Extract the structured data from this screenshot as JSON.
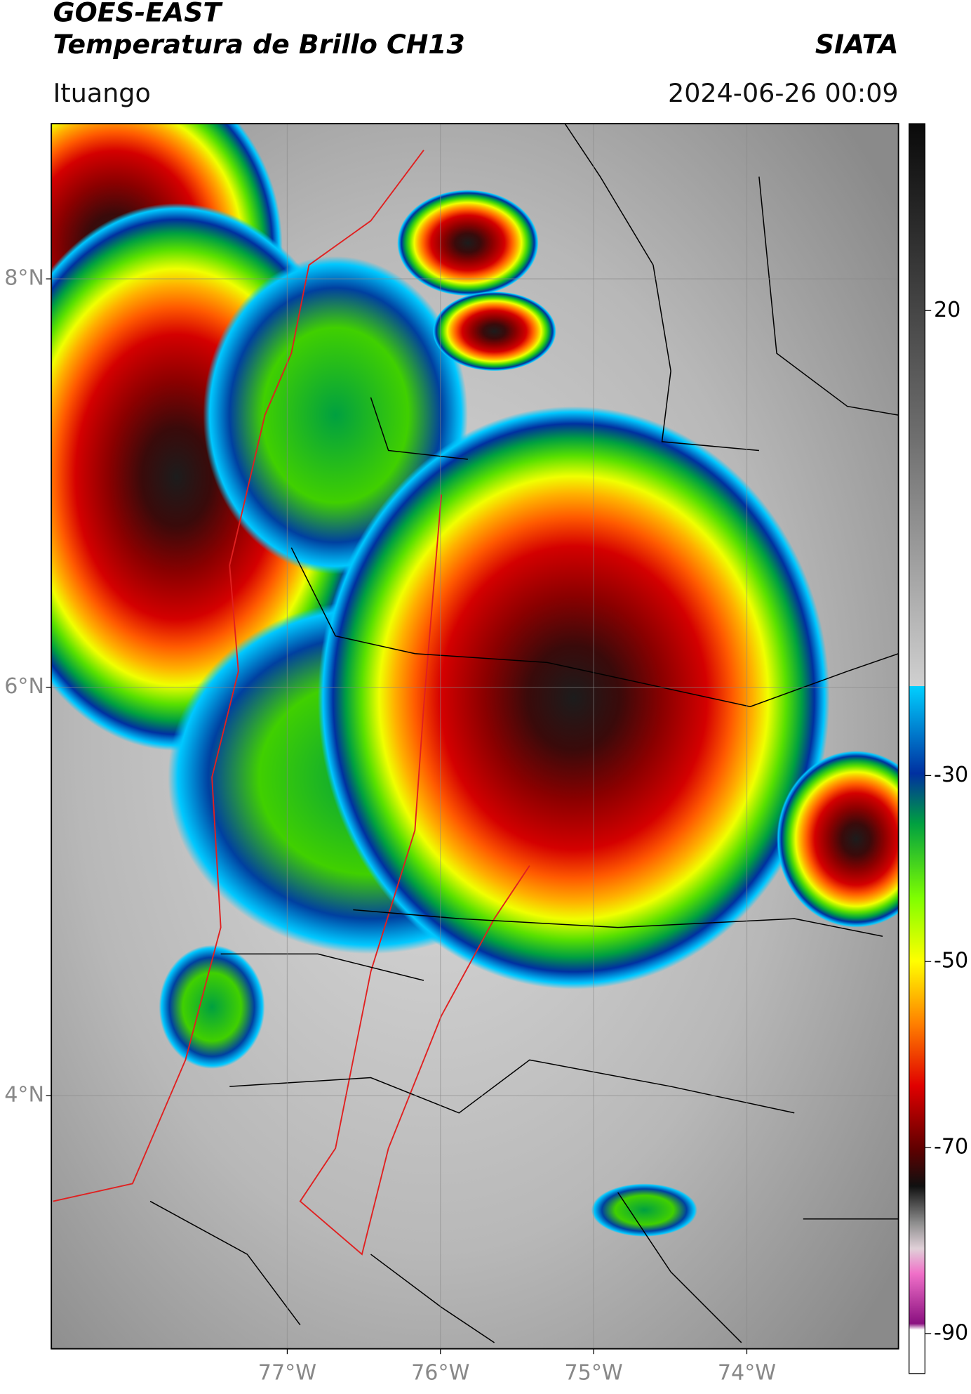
{
  "header": {
    "line1": "GOES-EAST",
    "line2": "Temperatura de Brillo CH13",
    "brand": "SIATA",
    "location": "Ituango",
    "datetime": "2024-06-26 00:09"
  },
  "map": {
    "xlim": [
      -78.54,
      -73.01
    ],
    "ylim": [
      2.76,
      8.76
    ],
    "xticks": [
      {
        "value": -77,
        "label": "77°W"
      },
      {
        "value": -76,
        "label": "76°W"
      },
      {
        "value": -75,
        "label": "75°W"
      },
      {
        "value": -74,
        "label": "74°W"
      }
    ],
    "yticks": [
      {
        "value": 8,
        "label": "8°N"
      },
      {
        "value": 6,
        "label": "6°N"
      },
      {
        "value": 4,
        "label": "4°N"
      }
    ],
    "grid": true
  },
  "colorbar": {
    "clim": [
      -94.3,
      40.1
    ],
    "ticks": [
      20,
      -30,
      -50,
      -70,
      -90
    ]
  }
}
